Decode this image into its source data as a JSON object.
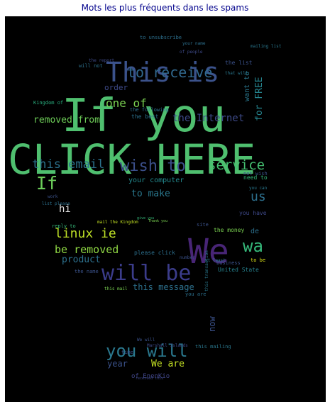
{
  "title": "Mots les plus fréquents dans les spams",
  "background": "#000000",
  "words": [
    {
      "text": "If you",
      "color": "#4fbf6f"
    },
    {
      "text": "CLICK HERE",
      "color": "#4fbf6f"
    },
    {
      "text": "This is",
      "color": "#3b528b"
    },
    {
      "text": "We",
      "color": "#482576"
    },
    {
      "text": "will be",
      "color": "#3b3c8a"
    },
    {
      "text": "you will",
      "color": "#2a788e"
    },
    {
      "text": "to receive",
      "color": "#31688e"
    },
    {
      "text": "wish to",
      "color": "#3b4f8a"
    },
    {
      "text": "service",
      "color": "#44bf70"
    },
    {
      "text": "this email",
      "color": "#2c728e"
    },
    {
      "text": "If",
      "color": "#6ccd5a"
    },
    {
      "text": "linux ie",
      "color": "#bddf26"
    },
    {
      "text": "be removed",
      "color": "#8fd744"
    },
    {
      "text": "wa",
      "color": "#35b779"
    },
    {
      "text": "us",
      "color": "#2d708e"
    },
    {
      "text": "one of",
      "color": "#7ad151"
    },
    {
      "text": "removed from",
      "color": "#6ece58"
    },
    {
      "text": "the Internet",
      "color": "#3e4a89"
    },
    {
      "text": "for FREE",
      "color": "#25848e"
    },
    {
      "text": "to make",
      "color": "#2a788e"
    },
    {
      "text": "hi",
      "color": "#e0e0e0"
    },
    {
      "text": "product",
      "color": "#2d718e"
    },
    {
      "text": "year",
      "color": "#3b528b"
    },
    {
      "text": "We are",
      "color": "#c2df23"
    },
    {
      "text": "now",
      "color": "#3b528b"
    },
    {
      "text": "this message",
      "color": "#2d718e"
    },
    {
      "text": "order",
      "color": "#3e4a89"
    },
    {
      "text": "your computer",
      "color": "#23898e"
    },
    {
      "text": "of EnenKio",
      "color": "#404688"
    },
    {
      "text": "the money",
      "color": "#7ad151"
    },
    {
      "text": "de",
      "color": "#2d718e"
    },
    {
      "text": "want to",
      "color": "#2a788e"
    },
    {
      "text": "you have",
      "color": "#3e4989"
    },
    {
      "text": "the best",
      "color": "#2c728e"
    },
    {
      "text": "please click",
      "color": "#2d708e"
    },
    {
      "text": "reply to",
      "color": "#35b779"
    },
    {
      "text": "business",
      "color": "#3b528b"
    },
    {
      "text": "United State",
      "color": "#26818e"
    },
    {
      "text": "to unsubscribe",
      "color": "#2d708e"
    },
    {
      "text": "the following",
      "color": "#2d718e"
    },
    {
      "text": "the list",
      "color": "#3b528b"
    },
    {
      "text": "mail the Kingdom",
      "color": "#c2df23"
    },
    {
      "text": "Kingdom of",
      "color": "#29af7f"
    },
    {
      "text": "need to",
      "color": "#35b779"
    },
    {
      "text": "you can",
      "color": "#2a788e"
    },
    {
      "text": "mailing list",
      "color": "#2a788e"
    },
    {
      "text": "site",
      "color": "#3b528b"
    },
    {
      "text": "Thank you",
      "color": "#7ad151"
    },
    {
      "text": "to be",
      "color": "#dde318"
    },
    {
      "text": "this mailing",
      "color": "#2a788e"
    },
    {
      "text": "give you",
      "color": "#35b779"
    },
    {
      "text": "the report",
      "color": "#3e4a89"
    },
    {
      "text": "will not",
      "color": "#2d718e"
    },
    {
      "text": "not wish",
      "color": "#3b528b"
    },
    {
      "text": "of people",
      "color": "#3e4a89"
    },
    {
      "text": "that will",
      "color": "#2a788e"
    },
    {
      "text": "your name",
      "color": "#2d708e"
    },
    {
      "text": "this mail",
      "color": "#7ad151"
    },
    {
      "text": "time",
      "color": "#3b528b"
    },
    {
      "text": "Marshall Islands",
      "color": "#3e4a89"
    },
    {
      "text": "We will",
      "color": "#3b528b"
    },
    {
      "text": "number",
      "color": "#3b528b"
    },
    {
      "text": "work",
      "color": "#3b528b"
    },
    {
      "text": "list please",
      "color": "#2d718e"
    },
    {
      "text": "at least",
      "color": "#2a788e"
    },
    {
      "text": "received this",
      "color": "#3e4a89"
    },
    {
      "text": "the name",
      "color": "#3b528b"
    },
    {
      "text": "you are",
      "color": "#2d718e"
    },
    {
      "text": "this transaction",
      "color": "#2a788e"
    }
  ]
}
